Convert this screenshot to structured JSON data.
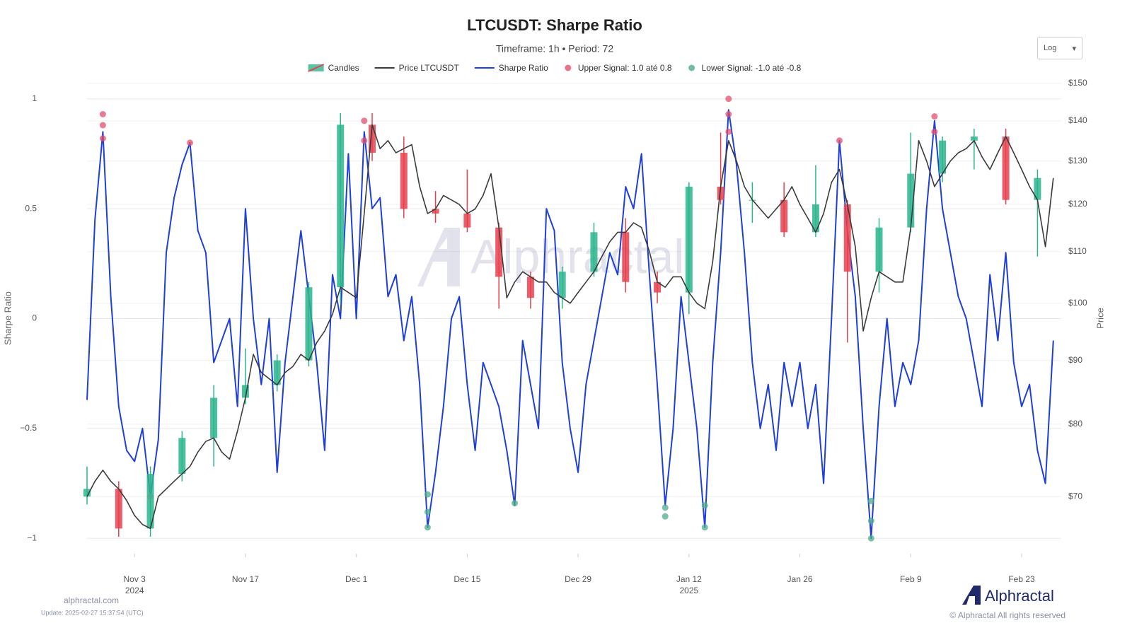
{
  "chart_data": {
    "type": "line",
    "title": "LTCUSDT: Sharpe Ratio",
    "subtitle": "Timeframe: 1h • Period: 72",
    "ylabel": "Sharpe Ratio",
    "y2label": "Price",
    "scale_control": "Log",
    "y2_log": true,
    "grid": true,
    "watermark": "Alphractal",
    "site": "alphractal.com",
    "update": "Update: 2025-02-27 15:37:54 (UTC)",
    "brand": "Alphractal",
    "copyright": "© Alphractal All rights reserved",
    "xlim": [
      "2024-10-28",
      "2025-02-28"
    ],
    "xticks": [
      {
        "value": "2024-11-03",
        "label": "Nov 3\n2024"
      },
      {
        "value": "2024-11-17",
        "label": "Nov 17"
      },
      {
        "value": "2024-12-01",
        "label": "Dec 1"
      },
      {
        "value": "2024-12-15",
        "label": "Dec 15"
      },
      {
        "value": "2024-12-29",
        "label": "Dec 29"
      },
      {
        "value": "2025-01-12",
        "label": "Jan 12\n2025"
      },
      {
        "value": "2025-01-26",
        "label": "Jan 26"
      },
      {
        "value": "2025-02-09",
        "label": "Feb 9"
      },
      {
        "value": "2025-02-23",
        "label": "Feb 23"
      }
    ],
    "ylim": [
      -1.07,
      1.07
    ],
    "yticks": [
      1,
      0.5,
      0,
      {
        "value": -0.5,
        "label": "−0.5"
      },
      {
        "value": -1,
        "label": "−1"
      }
    ],
    "y2lim": [
      63,
      150
    ],
    "y2ticks": [
      {
        "value": 70,
        "label": "$70"
      },
      {
        "value": 80,
        "label": "$80"
      },
      {
        "value": 90,
        "label": "$90"
      },
      {
        "value": 100,
        "label": "$100"
      },
      {
        "value": 110,
        "label": "$110"
      },
      {
        "value": 120,
        "label": "$120"
      },
      {
        "value": 130,
        "label": "$130"
      },
      {
        "value": 140,
        "label": "$140"
      },
      {
        "value": 150,
        "label": "$150"
      }
    ],
    "x": [
      "2024-10-28",
      "2024-10-29",
      "2024-10-30",
      "2024-10-31",
      "2024-11-01",
      "2024-11-02",
      "2024-11-03",
      "2024-11-04",
      "2024-11-05",
      "2024-11-06",
      "2024-11-07",
      "2024-11-08",
      "2024-11-09",
      "2024-11-10",
      "2024-11-11",
      "2024-11-12",
      "2024-11-13",
      "2024-11-14",
      "2024-11-15",
      "2024-11-16",
      "2024-11-17",
      "2024-11-18",
      "2024-11-19",
      "2024-11-20",
      "2024-11-21",
      "2024-11-22",
      "2024-11-23",
      "2024-11-24",
      "2024-11-25",
      "2024-11-26",
      "2024-11-27",
      "2024-11-28",
      "2024-11-29",
      "2024-11-30",
      "2024-12-01",
      "2024-12-02",
      "2024-12-03",
      "2024-12-04",
      "2024-12-05",
      "2024-12-06",
      "2024-12-07",
      "2024-12-08",
      "2024-12-09",
      "2024-12-10",
      "2024-12-11",
      "2024-12-12",
      "2024-12-13",
      "2024-12-14",
      "2024-12-15",
      "2024-12-16",
      "2024-12-17",
      "2024-12-18",
      "2024-12-19",
      "2024-12-20",
      "2024-12-21",
      "2024-12-22",
      "2024-12-23",
      "2024-12-24",
      "2024-12-25",
      "2024-12-26",
      "2024-12-27",
      "2024-12-28",
      "2024-12-29",
      "2024-12-30",
      "2024-12-31",
      "2025-01-01",
      "2025-01-02",
      "2025-01-03",
      "2025-01-04",
      "2025-01-05",
      "2025-01-06",
      "2025-01-07",
      "2025-01-08",
      "2025-01-09",
      "2025-01-10",
      "2025-01-11",
      "2025-01-12",
      "2025-01-13",
      "2025-01-14",
      "2025-01-15",
      "2025-01-16",
      "2025-01-17",
      "2025-01-18",
      "2025-01-19",
      "2025-01-20",
      "2025-01-21",
      "2025-01-22",
      "2025-01-23",
      "2025-01-24",
      "2025-01-25",
      "2025-01-26",
      "2025-01-27",
      "2025-01-28",
      "2025-01-29",
      "2025-01-30",
      "2025-01-31",
      "2025-02-01",
      "2025-02-02",
      "2025-02-03",
      "2025-02-04",
      "2025-02-05",
      "2025-02-06",
      "2025-02-07",
      "2025-02-08",
      "2025-02-09",
      "2025-02-10",
      "2025-02-11",
      "2025-02-12",
      "2025-02-13",
      "2025-02-14",
      "2025-02-15",
      "2025-02-16",
      "2025-02-17",
      "2025-02-18",
      "2025-02-19",
      "2025-02-20",
      "2025-02-21",
      "2025-02-22",
      "2025-02-23",
      "2025-02-24",
      "2025-02-25",
      "2025-02-26",
      "2025-02-27"
    ],
    "series": [
      {
        "name": "Candles",
        "type": "candlestick",
        "axis": "y2",
        "up_color": "#2bb58e",
        "down_color": "#e8414f",
        "x": [
          "2024-10-28",
          "2024-11-01",
          "2024-11-05",
          "2024-11-09",
          "2024-11-13",
          "2024-11-17",
          "2024-11-21",
          "2024-11-25",
          "2024-11-29",
          "2024-12-03",
          "2024-12-07",
          "2024-12-11",
          "2024-12-15",
          "2024-12-19",
          "2024-12-23",
          "2024-12-27",
          "2024-12-31",
          "2025-01-04",
          "2025-01-08",
          "2025-01-12",
          "2025-01-16",
          "2025-01-20",
          "2025-01-24",
          "2025-01-28",
          "2025-02-01",
          "2025-02-05",
          "2025-02-09",
          "2025-02-13",
          "2025-02-17",
          "2025-02-21",
          "2025-02-25"
        ],
        "open": [
          70,
          71,
          66,
          73,
          78,
          84,
          86,
          90,
          103,
          139,
          132,
          119,
          118,
          115,
          105,
          101,
          106,
          114,
          104,
          102,
          124,
          121,
          121,
          114,
          120,
          106,
          115,
          127,
          135,
          136,
          121
        ],
        "high": [
          74,
          72,
          74,
          79,
          86,
          92,
          91,
          104,
          142,
          142,
          136,
          123,
          128,
          116,
          106,
          107,
          116,
          117,
          106,
          125,
          137,
          125,
          125,
          129,
          121,
          117,
          137,
          136,
          138,
          138,
          128
        ],
        "low": [
          69,
          65,
          65,
          72,
          74,
          83,
          85,
          89,
          100,
          130,
          117,
          116,
          114,
          99,
          99,
          99,
          105,
          102,
          100,
          98,
          120,
          116,
          113,
          113,
          93,
          102,
          114,
          125,
          128,
          120,
          109
        ],
        "close": [
          71,
          66,
          73,
          78,
          84,
          86,
          90,
          103,
          139,
          132,
          119,
          118,
          115,
          105,
          101,
          106,
          114,
          104,
          102,
          124,
          121,
          121,
          114,
          120,
          106,
          115,
          127,
          135,
          136,
          121,
          126
        ]
      },
      {
        "name": "Price LTCUSDT",
        "type": "line",
        "axis": "y2",
        "color": "#3b3b3b",
        "values": [
          70,
          72,
          73.5,
          72,
          71,
          69.5,
          67.6,
          66.5,
          66,
          70,
          71,
          72,
          73,
          74,
          76,
          77.5,
          78,
          76,
          75,
          79,
          84,
          91,
          88,
          87,
          86,
          88,
          89,
          91,
          90,
          93,
          95,
          98,
          103,
          102,
          101,
          118,
          139,
          133,
          135,
          132,
          133,
          134,
          124,
          118,
          119,
          122,
          121,
          120,
          118,
          119,
          122,
          127,
          115,
          101,
          104,
          106,
          105,
          104,
          104,
          102,
          101,
          100,
          102,
          104,
          106,
          109,
          112,
          114,
          114,
          116,
          115,
          110,
          104,
          103,
          105,
          105,
          102,
          100,
          99,
          108,
          124,
          135,
          130,
          124,
          121,
          119,
          117,
          119,
          121,
          124,
          120,
          117,
          114,
          118,
          125,
          128,
          120,
          111,
          95,
          101,
          106,
          105,
          104,
          104,
          115,
          135,
          130,
          124,
          127,
          130,
          132,
          133,
          135,
          131,
          128,
          132,
          136,
          132,
          128,
          124,
          121,
          111,
          126
        ]
      },
      {
        "name": "Sharpe Ratio",
        "type": "line",
        "color": "#1f3fdb",
        "values": [
          -0.37,
          0.45,
          0.85,
          0.1,
          -0.4,
          -0.6,
          -0.65,
          -0.5,
          -0.81,
          -0.55,
          0.3,
          0.55,
          0.7,
          0.8,
          0.4,
          0.3,
          -0.2,
          -0.1,
          0,
          -0.4,
          0.5,
          0,
          -0.3,
          0,
          -0.7,
          -0.2,
          0.1,
          0.4,
          0.1,
          -0.2,
          -0.6,
          0.2,
          0,
          0.75,
          0,
          0.85,
          0.5,
          0.55,
          0.1,
          0.2,
          -0.1,
          0.1,
          -0.3,
          -0.95,
          -0.7,
          -0.4,
          0,
          0.1,
          -0.3,
          -0.6,
          -0.2,
          -0.3,
          -0.4,
          -0.6,
          -0.85,
          -0.1,
          -0.3,
          -0.5,
          0.5,
          0.4,
          -0.2,
          -0.5,
          -0.7,
          -0.3,
          -0.1,
          0.1,
          0.3,
          0.2,
          0.6,
          0.5,
          0.75,
          0.2,
          -0.3,
          -0.85,
          -0.5,
          0.1,
          -0.2,
          -0.5,
          -0.95,
          -0.2,
          0.3,
          0.95,
          0.7,
          0.3,
          -0.2,
          -0.5,
          -0.3,
          -0.6,
          -0.2,
          -0.4,
          -0.2,
          -0.5,
          -0.3,
          -0.75,
          0,
          0.81,
          0.4,
          0.1,
          -0.5,
          -1.0,
          -0.4,
          0,
          -0.4,
          -0.2,
          -0.3,
          -0.1,
          0.5,
          0.9,
          0.5,
          0.3,
          0.1,
          0,
          -0.2,
          -0.4,
          0.2,
          -0.1,
          0.3,
          -0.2,
          -0.4,
          -0.3,
          -0.6,
          -0.75,
          -0.1
        ]
      },
      {
        "name": "Upper Signal: 1.0 até 0.8",
        "type": "scatter",
        "color": "#e2506e",
        "x": [
          "2024-10-30",
          "2024-10-30",
          "2024-10-30",
          "2024-11-10",
          "2024-12-02",
          "2024-12-02",
          "2025-01-17",
          "2025-01-17",
          "2025-01-17",
          "2025-01-31",
          "2025-02-12",
          "2025-02-12"
        ],
        "values": [
          0.93,
          0.88,
          0.82,
          0.8,
          0.9,
          0.81,
          1.0,
          0.93,
          0.85,
          0.81,
          0.92,
          0.85
        ]
      },
      {
        "name": "Lower Signal: -1.0 até -0.8",
        "type": "scatter",
        "color": "#4cae8c",
        "x": [
          "2024-11-05",
          "2024-12-10",
          "2024-12-10",
          "2024-12-10",
          "2024-12-21",
          "2025-01-09",
          "2025-01-09",
          "2025-01-14",
          "2025-01-14",
          "2025-02-04",
          "2025-02-04",
          "2025-02-04"
        ],
        "values": [
          -0.81,
          -0.95,
          -0.88,
          -0.8,
          -0.84,
          -0.86,
          -0.9,
          -0.85,
          -0.95,
          -0.83,
          -0.92,
          -1.0
        ]
      }
    ]
  }
}
